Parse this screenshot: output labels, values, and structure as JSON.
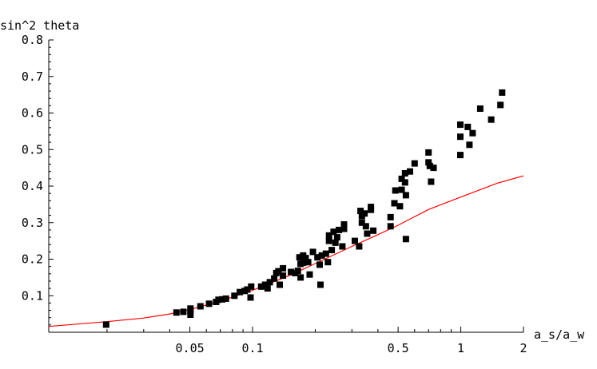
{
  "chart_data": {
    "type": "scatter",
    "title": "",
    "xlabel": "a_s/a_w",
    "ylabel": "sin^2 theta",
    "x_scale": "log",
    "xlim": [
      0.0105,
      2.0
    ],
    "ylim": [
      0.0,
      0.8
    ],
    "grid": false,
    "legend": "none",
    "x_ticks": [
      {
        "value": 0.05,
        "label": "0.05"
      },
      {
        "value": 0.1,
        "label": "0.1"
      },
      {
        "value": 0.5,
        "label": "0.5"
      },
      {
        "value": 1,
        "label": "1"
      },
      {
        "value": 2,
        "label": "2"
      }
    ],
    "y_ticks": [
      {
        "value": 0.1,
        "label": "0.1"
      },
      {
        "value": 0.2,
        "label": "0.2"
      },
      {
        "value": 0.3,
        "label": "0.3"
      },
      {
        "value": 0.4,
        "label": "0.4"
      },
      {
        "value": 0.5,
        "label": "0.5"
      },
      {
        "value": 0.6,
        "label": "0.6"
      },
      {
        "value": 0.7,
        "label": "0.7"
      },
      {
        "value": 0.8,
        "label": "0.8"
      }
    ],
    "series": [
      {
        "kind": "points",
        "marker": "square",
        "color": "#000000",
        "points": [
          [
            0.0198,
            0.021
          ],
          [
            0.0431,
            0.054
          ],
          [
            0.0465,
            0.056
          ],
          [
            0.0503,
            0.058
          ],
          [
            0.0503,
            0.048
          ],
          [
            0.0503,
            0.065
          ],
          [
            0.0562,
            0.071
          ],
          [
            0.0618,
            0.078
          ],
          [
            0.0668,
            0.083
          ],
          [
            0.0686,
            0.089
          ],
          [
            0.0715,
            0.09
          ],
          [
            0.0745,
            0.092
          ],
          [
            0.0818,
            0.1
          ],
          [
            0.0869,
            0.11
          ],
          [
            0.0916,
            0.113
          ],
          [
            0.0943,
            0.117
          ],
          [
            0.0978,
            0.095
          ],
          [
            0.0985,
            0.125
          ],
          [
            0.11,
            0.125
          ],
          [
            0.115,
            0.13
          ],
          [
            0.118,
            0.12
          ],
          [
            0.121,
            0.137
          ],
          [
            0.127,
            0.147
          ],
          [
            0.13,
            0.162
          ],
          [
            0.133,
            0.167
          ],
          [
            0.135,
            0.13
          ],
          [
            0.14,
            0.155
          ],
          [
            0.14,
            0.175
          ],
          [
            0.153,
            0.165
          ],
          [
            0.16,
            0.162
          ],
          [
            0.165,
            0.168
          ],
          [
            0.168,
            0.205
          ],
          [
            0.17,
            0.15
          ],
          [
            0.17,
            0.187
          ],
          [
            0.175,
            0.19
          ],
          [
            0.175,
            0.21
          ],
          [
            0.18,
            0.203
          ],
          [
            0.185,
            0.192
          ],
          [
            0.188,
            0.158
          ],
          [
            0.195,
            0.22
          ],
          [
            0.205,
            0.205
          ],
          [
            0.21,
            0.185
          ],
          [
            0.212,
            0.13
          ],
          [
            0.215,
            0.21
          ],
          [
            0.225,
            0.215
          ],
          [
            0.23,
            0.192
          ],
          [
            0.233,
            0.25
          ],
          [
            0.233,
            0.265
          ],
          [
            0.24,
            0.225
          ],
          [
            0.245,
            0.275
          ],
          [
            0.25,
            0.245
          ],
          [
            0.255,
            0.26
          ],
          [
            0.26,
            0.28
          ],
          [
            0.27,
            0.235
          ],
          [
            0.275,
            0.295
          ],
          [
            0.275,
            0.283
          ],
          [
            0.31,
            0.25
          ],
          [
            0.325,
            0.235
          ],
          [
            0.33,
            0.332
          ],
          [
            0.335,
            0.318
          ],
          [
            0.335,
            0.3
          ],
          [
            0.345,
            0.325
          ],
          [
            0.35,
            0.29
          ],
          [
            0.355,
            0.27
          ],
          [
            0.37,
            0.343
          ],
          [
            0.37,
            0.335
          ],
          [
            0.38,
            0.278
          ],
          [
            0.46,
            0.29
          ],
          [
            0.46,
            0.315
          ],
          [
            0.48,
            0.353
          ],
          [
            0.485,
            0.388
          ],
          [
            0.51,
            0.345
          ],
          [
            0.52,
            0.42
          ],
          [
            0.52,
            0.39
          ],
          [
            0.54,
            0.435
          ],
          [
            0.54,
            0.41
          ],
          [
            0.545,
            0.375
          ],
          [
            0.545,
            0.255
          ],
          [
            0.57,
            0.44
          ],
          [
            0.6,
            0.462
          ],
          [
            0.7,
            0.492
          ],
          [
            0.7,
            0.465
          ],
          [
            0.71,
            0.455
          ],
          [
            0.72,
            0.412
          ],
          [
            0.74,
            0.45
          ],
          [
            0.995,
            0.568
          ],
          [
            0.995,
            0.535
          ],
          [
            0.995,
            0.485
          ],
          [
            1.08,
            0.562
          ],
          [
            1.1,
            0.513
          ],
          [
            1.14,
            0.545
          ],
          [
            1.24,
            0.612
          ],
          [
            1.4,
            0.582
          ],
          [
            1.55,
            0.622
          ],
          [
            1.58,
            0.656
          ]
        ]
      },
      {
        "kind": "line",
        "color": "#ff0000",
        "points": [
          [
            0.0105,
            0.016
          ],
          [
            0.02,
            0.029
          ],
          [
            0.03,
            0.039
          ],
          [
            0.04,
            0.05
          ],
          [
            0.05,
            0.062
          ],
          [
            0.07,
            0.085
          ],
          [
            0.1,
            0.115
          ],
          [
            0.15,
            0.155
          ],
          [
            0.2,
            0.188
          ],
          [
            0.3,
            0.235
          ],
          [
            0.4,
            0.267
          ],
          [
            0.5,
            0.293
          ],
          [
            0.7,
            0.336
          ],
          [
            1.0,
            0.37
          ],
          [
            1.5,
            0.408
          ],
          [
            2.0,
            0.428
          ]
        ]
      }
    ]
  }
}
